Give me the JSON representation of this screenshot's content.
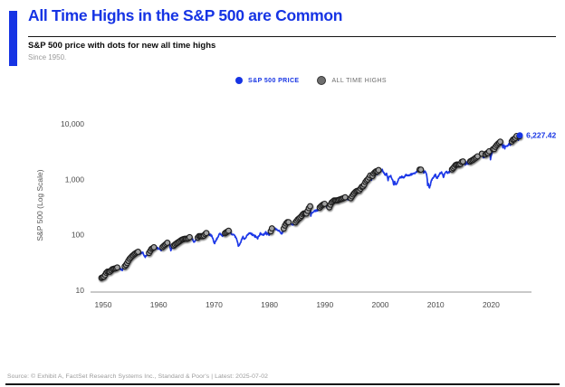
{
  "header": {
    "title": "All Time Highs in the S&P 500 are Common",
    "subtitle": "S&P 500 price with dots for new all time highs",
    "since": "Since 1950."
  },
  "legend": {
    "price_label": "S&P 500 PRICE",
    "ath_label": "ALL TIME HIGHS"
  },
  "footer": {
    "source": "Source: © Exhibit A, FactSet Research Systems Inc., Standard & Poor's | Latest: 2025-07-02"
  },
  "colors": {
    "accent_blue": "#1634e4",
    "line_blue": "#1d38e8",
    "ath_dot_fill": "#a2a2a2",
    "ath_dot_stroke": "#1c1c1c",
    "ath_legend_dot": "#6e6e6e",
    "ath_text": "#6b6b6b",
    "axis_text": "#4a4a4a",
    "axis_title_text": "#555555",
    "axis_line": "#a9a9a9"
  },
  "chart_data": {
    "type": "line",
    "title": "All Time Highs in the S&P 500 are Common",
    "subtitle": "S&P 500 price with dots for new all time highs",
    "ylabel": "S&P 500 (Log Scale)",
    "xlabel": "",
    "x_ticks": [
      1950,
      1960,
      1970,
      1980,
      1990,
      2000,
      2010,
      2020
    ],
    "y_ticks": [
      {
        "value": 10,
        "label": "10"
      },
      {
        "value": 100,
        "label": "100"
      },
      {
        "value": 1000,
        "label": "1,000"
      },
      {
        "value": 10000,
        "label": "10,000"
      }
    ],
    "xlim": [
      1950,
      2025.5
    ],
    "ylim_log": [
      10,
      10000
    ],
    "grid": false,
    "legend_position": "top-center",
    "last_point": {
      "year": 2025.5,
      "value": 6227.42,
      "label": "6,227.42"
    },
    "series": [
      {
        "name": "S&P 500 Price",
        "points": [
          [
            1950.0,
            16.7
          ],
          [
            1950.5,
            17.7
          ],
          [
            1951.0,
            21.7
          ],
          [
            1951.5,
            21.5
          ],
          [
            1952.0,
            24.1
          ],
          [
            1952.6,
            24.9
          ],
          [
            1953.0,
            26.2
          ],
          [
            1953.4,
            24.0
          ],
          [
            1953.7,
            22.7
          ],
          [
            1954.0,
            25.5
          ],
          [
            1954.5,
            29.2
          ],
          [
            1955.0,
            36.0
          ],
          [
            1955.5,
            41.0
          ],
          [
            1956.0,
            45.2
          ],
          [
            1956.6,
            49.6
          ],
          [
            1957.0,
            46.2
          ],
          [
            1957.5,
            47.9
          ],
          [
            1957.8,
            39.0
          ],
          [
            1958.0,
            41.1
          ],
          [
            1958.5,
            45.3
          ],
          [
            1959.0,
            55.4
          ],
          [
            1959.6,
            60.7
          ],
          [
            1960.0,
            58.0
          ],
          [
            1960.8,
            52.3
          ],
          [
            1961.0,
            59.7
          ],
          [
            1961.95,
            72.6
          ],
          [
            1962.3,
            69.1
          ],
          [
            1962.5,
            52.3
          ],
          [
            1963.0,
            63.1
          ],
          [
            1963.5,
            69.6
          ],
          [
            1964.0,
            75.0
          ],
          [
            1964.5,
            81.7
          ],
          [
            1965.0,
            84.8
          ],
          [
            1965.5,
            84.1
          ],
          [
            1966.1,
            93.8
          ],
          [
            1966.7,
            73.2
          ],
          [
            1967.0,
            80.4
          ],
          [
            1967.7,
            96.7
          ],
          [
            1968.2,
            89.1
          ],
          [
            1968.9,
            108.4
          ],
          [
            1969.4,
            103.0
          ],
          [
            1969.8,
            97.7
          ],
          [
            1970.0,
            92.1
          ],
          [
            1970.4,
            69.3
          ],
          [
            1971.0,
            91.2
          ],
          [
            1971.35,
            104.8
          ],
          [
            1971.9,
            94.2
          ],
          [
            1972.0,
            102.1
          ],
          [
            1972.95,
            118.1
          ],
          [
            1973.04,
            119.9
          ],
          [
            1973.5,
            103.6
          ],
          [
            1974.0,
            96.6
          ],
          [
            1974.3,
            90.0
          ],
          [
            1974.75,
            62.3
          ],
          [
            1975.0,
            68.6
          ],
          [
            1975.55,
            95.2
          ],
          [
            1975.75,
            83.9
          ],
          [
            1976.0,
            90.2
          ],
          [
            1976.7,
            107.8
          ],
          [
            1977.0,
            103.8
          ],
          [
            1977.9,
            92.3
          ],
          [
            1978.2,
            86.9
          ],
          [
            1978.7,
            106.99
          ],
          [
            1979.0,
            96.7
          ],
          [
            1979.75,
            111.3
          ],
          [
            1979.85,
            99.9
          ],
          [
            1980.0,
            107.9
          ],
          [
            1980.25,
            98.2
          ],
          [
            1980.9,
            140.5
          ],
          [
            1981.0,
            135.8
          ],
          [
            1981.6,
            122.8
          ],
          [
            1982.0,
            120.4
          ],
          [
            1982.6,
            102.4
          ],
          [
            1983.0,
            140.6
          ],
          [
            1983.5,
            170.1
          ],
          [
            1984.0,
            164.9
          ],
          [
            1984.55,
            150.6
          ],
          [
            1985.0,
            167.2
          ],
          [
            1985.5,
            192.4
          ],
          [
            1986.0,
            211.3
          ],
          [
            1986.5,
            245.7
          ],
          [
            1986.7,
            236.1
          ],
          [
            1987.0,
            242.2
          ],
          [
            1987.65,
            336.8
          ],
          [
            1987.8,
            223.9
          ],
          [
            1987.92,
            251.8
          ],
          [
            1988.0,
            247.1
          ],
          [
            1988.5,
            272.0
          ],
          [
            1989.0,
            277.7
          ],
          [
            1989.5,
            320.5
          ],
          [
            1990.0,
            353.4
          ],
          [
            1990.45,
            367.4
          ],
          [
            1990.78,
            295.5
          ],
          [
            1991.0,
            330.2
          ],
          [
            1991.1,
            311.5
          ],
          [
            1991.5,
            380.0
          ],
          [
            1992.0,
            417.1
          ],
          [
            1992.3,
            403.7
          ],
          [
            1993.0,
            435.7
          ],
          [
            1993.5,
            448.1
          ],
          [
            1994.1,
            481.6
          ],
          [
            1994.3,
            445.8
          ],
          [
            1994.5,
            444.3
          ],
          [
            1995.0,
            459.3
          ],
          [
            1995.5,
            544.8
          ],
          [
            1996.0,
            615.9
          ],
          [
            1996.55,
            635.3
          ],
          [
            1997.0,
            740.7
          ],
          [
            1997.3,
            757.1
          ],
          [
            1997.75,
            947.0
          ],
          [
            1998.0,
            970.4
          ],
          [
            1998.55,
            1186.8
          ],
          [
            1998.67,
            957.3
          ],
          [
            1999.0,
            1229.2
          ],
          [
            1999.55,
            1418.8
          ],
          [
            1999.8,
            1247.4
          ],
          [
            2000.0,
            1469.3
          ],
          [
            2000.22,
            1527.5
          ],
          [
            2000.45,
            1356.6
          ],
          [
            2000.65,
            1520.8
          ],
          [
            2001.0,
            1320.3
          ],
          [
            2001.25,
            1160.3
          ],
          [
            2001.45,
            1312.8
          ],
          [
            2001.72,
            965.8
          ],
          [
            2002.0,
            1148.1
          ],
          [
            2002.25,
            1146.2
          ],
          [
            2002.55,
            989.8
          ],
          [
            2002.78,
            776.8
          ],
          [
            2002.9,
            900.0
          ],
          [
            2003.2,
            800.7
          ],
          [
            2003.55,
            974.5
          ],
          [
            2004.0,
            1111.9
          ],
          [
            2004.6,
            1101.7
          ],
          [
            2005.0,
            1211.9
          ],
          [
            2005.3,
            1156.8
          ],
          [
            2006.0,
            1248.3
          ],
          [
            2006.5,
            1270.2
          ],
          [
            2007.0,
            1418.3
          ],
          [
            2007.4,
            1503.4
          ],
          [
            2007.6,
            1455.3
          ],
          [
            2007.78,
            1565.2
          ],
          [
            2008.0,
            1468.4
          ],
          [
            2008.2,
            1322.7
          ],
          [
            2008.4,
            1426.6
          ],
          [
            2008.75,
            1166.4
          ],
          [
            2008.87,
            752.4
          ],
          [
            2008.95,
            896.2
          ],
          [
            2009.18,
            676.5
          ],
          [
            2009.5,
            919.3
          ],
          [
            2010.0,
            1115.1
          ],
          [
            2010.3,
            1217.3
          ],
          [
            2010.52,
            1022.6
          ],
          [
            2011.0,
            1257.6
          ],
          [
            2011.33,
            1363.6
          ],
          [
            2011.75,
            1099.2
          ],
          [
            2011.9,
            1258.5
          ],
          [
            2012.0,
            1257.6
          ],
          [
            2012.3,
            1419.0
          ],
          [
            2012.45,
            1278.0
          ],
          [
            2013.0,
            1426.2
          ],
          [
            2013.5,
            1606.3
          ],
          [
            2014.0,
            1848.4
          ],
          [
            2014.75,
            1862.5
          ],
          [
            2015.0,
            2058.9
          ],
          [
            2015.4,
            2130.8
          ],
          [
            2015.65,
            1867.6
          ],
          [
            2015.85,
            2103.8
          ],
          [
            2016.1,
            1829.1
          ],
          [
            2016.5,
            2098.9
          ],
          [
            2017.0,
            2238.8
          ],
          [
            2017.5,
            2423.4
          ],
          [
            2018.0,
            2673.6
          ],
          [
            2018.07,
            2872.9
          ],
          [
            2018.15,
            2581.0
          ],
          [
            2018.7,
            2930.8
          ],
          [
            2018.97,
            2351.1
          ],
          [
            2019.3,
            2834.4
          ],
          [
            2019.42,
            2752.1
          ],
          [
            2019.58,
            3025.9
          ],
          [
            2019.6,
            2847.1
          ],
          [
            2020.0,
            3230.8
          ],
          [
            2020.12,
            3386.2
          ],
          [
            2020.22,
            2237.4
          ],
          [
            2020.42,
            2863.7
          ],
          [
            2020.68,
            3580.8
          ],
          [
            2020.73,
            3269.9
          ],
          [
            2021.0,
            3756.1
          ],
          [
            2021.35,
            4181.2
          ],
          [
            2021.72,
            4528.8
          ],
          [
            2021.98,
            4793.1
          ],
          [
            2022.02,
            4796.6
          ],
          [
            2022.2,
            4170.7
          ],
          [
            2022.3,
            4463.1
          ],
          [
            2022.45,
            3674.8
          ],
          [
            2022.6,
            4305.2
          ],
          [
            2022.78,
            3577.0
          ],
          [
            2022.9,
            4080.1
          ],
          [
            2023.0,
            3839.5
          ],
          [
            2023.1,
            4179.8
          ],
          [
            2023.2,
            3855.8
          ],
          [
            2023.55,
            4450.4
          ],
          [
            2023.8,
            4117.4
          ],
          [
            2024.0,
            4769.8
          ],
          [
            2024.3,
            5254.4
          ],
          [
            2024.37,
            5035.7
          ],
          [
            2024.55,
            5460.5
          ],
          [
            2024.6,
            5186.3
          ],
          [
            2024.7,
            5648.4
          ],
          [
            2024.75,
            5408.4
          ],
          [
            2024.92,
            6090.3
          ],
          [
            2025.0,
            5881.6
          ],
          [
            2025.12,
            6144.2
          ],
          [
            2025.2,
            5521.5
          ],
          [
            2025.27,
            4982.8
          ],
          [
            2025.35,
            5663.0
          ],
          [
            2025.5,
            6227.42
          ]
        ]
      }
    ],
    "ath_segments": [
      [
        1950.0,
        1952.95
      ],
      [
        1954.2,
        1956.62
      ],
      [
        1958.6,
        1959.62
      ],
      [
        1961.02,
        1961.95
      ],
      [
        1963.05,
        1966.12
      ],
      [
        1967.4,
        1968.95
      ],
      [
        1972.3,
        1973.05
      ],
      [
        1980.55,
        1980.95
      ],
      [
        1982.9,
        1983.8
      ],
      [
        1985.02,
        1987.66
      ],
      [
        1989.4,
        1990.46
      ],
      [
        1991.12,
        1994.15
      ],
      [
        1995.0,
        1998.56
      ],
      [
        1998.92,
        2000.23
      ],
      [
        2007.42,
        2007.79
      ],
      [
        2013.26,
        2015.42
      ],
      [
        2016.55,
        2018.08
      ],
      [
        2018.66,
        2018.74
      ],
      [
        2019.32,
        2020.13
      ],
      [
        2020.66,
        2022.02
      ],
      [
        2024.05,
        2025.13
      ],
      [
        2025.44,
        2025.5
      ]
    ]
  }
}
